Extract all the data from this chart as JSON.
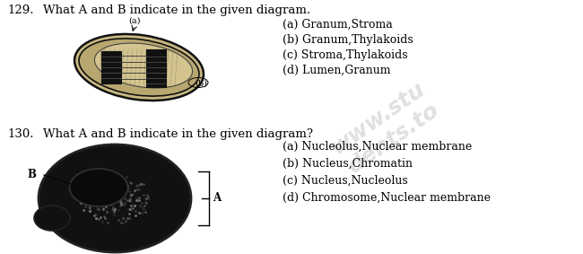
{
  "background_color": "#ffffff",
  "q129_number": "129.",
  "q129_question": "What A and B indicate in the given diagram.",
  "q130_number": "130.",
  "q130_question": "What A and B indicate in the given diagram?",
  "q129_options": [
    "(a) Granum,Stroma",
    "(b) Granum,Thylakoids",
    "(c) Stroma,Thylakoids",
    "(d) Lumen,Granum"
  ],
  "q130_options": [
    "(a) Nucleolus,Nuclear membrane",
    "(b) Nucleus,Chromatin",
    "(c) Nucleus,Nucleolus",
    "(d) Chromosome,Nuclear membrane"
  ],
  "text_color": "#000000",
  "font_size_question": 9.5,
  "font_size_options": 9.0,
  "font_size_number": 9.5,
  "watermark_lines": [
    "www.stu",
    "dents.to"
  ],
  "watermark_color": "#bbbbbb",
  "watermark_alpha": 0.45,
  "watermark_fontsize": 18
}
